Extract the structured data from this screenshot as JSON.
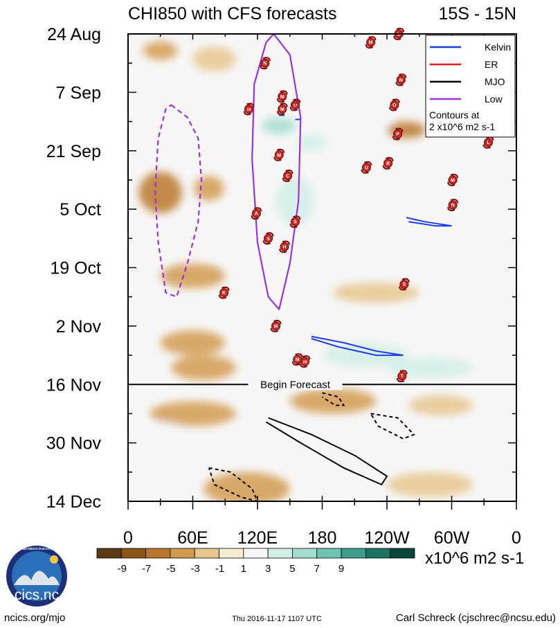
{
  "title_left": "CHI850 with CFS forecasts",
  "title_right": "15S - 15N",
  "chart_data": {
    "type": "heatmap",
    "title": "CHI850 with CFS forecasts",
    "subtitle": "15S - 15N",
    "x_range": [
      0,
      360
    ],
    "x_ticks": [
      {
        "lon": 0,
        "label": "0"
      },
      {
        "lon": 60,
        "label": "60E"
      },
      {
        "lon": 120,
        "label": "120E"
      },
      {
        "lon": 180,
        "label": "180"
      },
      {
        "lon": 240,
        "label": "120W"
      },
      {
        "lon": 300,
        "label": "60W"
      },
      {
        "lon": 360,
        "label": "0"
      }
    ],
    "y_range_days": [
      0,
      112
    ],
    "y_ticks": [
      {
        "day": 0,
        "label": "24 Aug"
      },
      {
        "day": 14,
        "label": "7 Sep"
      },
      {
        "day": 28,
        "label": "21 Sep"
      },
      {
        "day": 42,
        "label": "5 Oct"
      },
      {
        "day": 56,
        "label": "19 Oct"
      },
      {
        "day": 70,
        "label": "2 Nov"
      },
      {
        "day": 84,
        "label": "16 Nov"
      },
      {
        "day": 98,
        "label": "30 Nov"
      },
      {
        "day": 112,
        "label": "14 Dec"
      }
    ],
    "forecast_start_day": 84,
    "forecast_label": "Begin Forecast",
    "colorbar": {
      "levels": [
        "-9",
        "-7",
        "-5",
        "-3",
        "-1",
        "1",
        "3",
        "5",
        "7",
        "9"
      ],
      "colors": [
        "#5a3a12",
        "#8a5718",
        "#b8772a",
        "#d29a4f",
        "#e6c68e",
        "#f6ecd2",
        "#f7f7f7",
        "#d2eee7",
        "#a4dccf",
        "#6fc3b2",
        "#3d9c8c",
        "#1a7363",
        "#08463b"
      ],
      "units": "x10^6 m2 s-1"
    },
    "legend": {
      "placement": "top-right",
      "entries": [
        {
          "name": "Kelvin",
          "color": "#1f3fe0"
        },
        {
          "name": "ER",
          "color": "#e31a1c"
        },
        {
          "name": "MJO",
          "color": "#000000"
        },
        {
          "name": "Low",
          "color": "#9b30e0"
        }
      ],
      "note_line1": "Contours at",
      "note_line2": "2 x10^6 m2 s-1"
    },
    "shading_blobs": [
      {
        "lon": 30,
        "day": 4,
        "rlon": 16,
        "rday": 2.2,
        "val": -4
      },
      {
        "lon": 80,
        "day": 6,
        "rlon": 20,
        "rday": 3,
        "val": -2
      },
      {
        "lon": 150,
        "day": 14,
        "rlon": 25,
        "rday": 2.5,
        "val": 3
      },
      {
        "lon": 140,
        "day": 22,
        "rlon": 16,
        "rday": 2,
        "val": 6
      },
      {
        "lon": 170,
        "day": 26,
        "rlon": 14,
        "rday": 2,
        "val": 4
      },
      {
        "lon": 220,
        "day": 20,
        "rlon": 24,
        "rday": 3,
        "val": 3
      },
      {
        "lon": 258,
        "day": 23,
        "rlon": 18,
        "rday": 2,
        "val": -5
      },
      {
        "lon": 250,
        "day": 33,
        "rlon": 25,
        "rday": 3,
        "val": 3
      },
      {
        "lon": 30,
        "day": 38,
        "rlon": 20,
        "rday": 5,
        "val": -5
      },
      {
        "lon": 75,
        "day": 37,
        "rlon": 14,
        "rday": 3,
        "val": -3
      },
      {
        "lon": 155,
        "day": 40,
        "rlon": 18,
        "rday": 6,
        "val": 4
      },
      {
        "lon": 290,
        "day": 35,
        "rlon": 30,
        "rday": 3,
        "val": 2
      },
      {
        "lon": 60,
        "day": 58,
        "rlon": 30,
        "rday": 3,
        "val": -4
      },
      {
        "lon": 140,
        "day": 56,
        "rlon": 14,
        "rday": 3,
        "val": 3
      },
      {
        "lon": 230,
        "day": 62,
        "rlon": 40,
        "rday": 2.5,
        "val": -2
      },
      {
        "lon": 60,
        "day": 74,
        "rlon": 30,
        "rday": 3,
        "val": -4
      },
      {
        "lon": 180,
        "day": 68,
        "rlon": 30,
        "rday": 2.5,
        "val": 2
      },
      {
        "lon": 220,
        "day": 77,
        "rlon": 40,
        "rday": 3,
        "val": 5
      },
      {
        "lon": 280,
        "day": 80,
        "rlon": 40,
        "rday": 2.5,
        "val": 5
      },
      {
        "lon": 70,
        "day": 80,
        "rlon": 30,
        "rday": 3,
        "val": -3
      },
      {
        "lon": 190,
        "day": 88,
        "rlon": 40,
        "rday": 3,
        "val": -3
      },
      {
        "lon": 60,
        "day": 91,
        "rlon": 40,
        "rday": 3,
        "val": -3
      },
      {
        "lon": 290,
        "day": 89,
        "rlon": 30,
        "rday": 2.5,
        "val": -1
      },
      {
        "lon": 30,
        "day": 96,
        "rlon": 25,
        "rday": 3,
        "val": 3
      },
      {
        "lon": 320,
        "day": 96,
        "rlon": 30,
        "rday": 3,
        "val": 3
      },
      {
        "lon": 200,
        "day": 102,
        "rlon": 30,
        "rday": 3,
        "val": 3
      },
      {
        "lon": 110,
        "day": 109,
        "rlon": 40,
        "rday": 4,
        "val": -4
      },
      {
        "lon": 280,
        "day": 108,
        "rlon": 40,
        "rday": 3,
        "val": -2
      }
    ],
    "mjo_contours": [
      {
        "style": "solid",
        "points": [
          [
            130,
            92
          ],
          [
            170,
            96
          ],
          [
            210,
            101
          ],
          [
            240,
            106
          ],
          [
            235,
            108
          ],
          [
            200,
            104
          ],
          [
            160,
            98
          ],
          [
            128,
            93
          ]
        ]
      },
      {
        "style": "dashed",
        "points": [
          [
            180,
            86
          ],
          [
            195,
            87
          ],
          [
            200,
            89
          ],
          [
            192,
            89
          ],
          [
            180,
            87
          ]
        ]
      },
      {
        "style": "dashed",
        "points": [
          [
            225,
            91
          ],
          [
            250,
            92
          ],
          [
            265,
            96
          ],
          [
            255,
            97
          ],
          [
            232,
            94
          ],
          [
            225,
            91
          ]
        ]
      },
      {
        "style": "dashed",
        "points": [
          [
            75,
            104
          ],
          [
            95,
            105
          ],
          [
            115,
            109
          ],
          [
            120,
            112
          ],
          [
            105,
            111
          ],
          [
            80,
            108
          ],
          [
            75,
            104
          ]
        ]
      }
    ],
    "kelvin_contours": [
      {
        "points": [
          [
            170,
            72.5
          ],
          [
            200,
            74
          ],
          [
            230,
            76
          ],
          [
            255,
            77
          ],
          [
            230,
            77
          ],
          [
            195,
            75
          ],
          [
            170,
            73
          ]
        ]
      },
      {
        "points": [
          [
            258,
            44
          ],
          [
            275,
            45
          ],
          [
            300,
            46
          ],
          [
            285,
            46
          ],
          [
            260,
            45
          ]
        ]
      },
      {
        "points": [
          [
            140,
            19.5
          ],
          [
            145,
            19.5
          ]
        ]
      },
      {
        "points": [
          [
            155,
            20.5
          ],
          [
            160,
            20.5
          ]
        ]
      }
    ],
    "low_contours": [
      {
        "style": "solid",
        "color": "#9b30e0",
        "points": [
          [
            135,
            0
          ],
          [
            150,
            5
          ],
          [
            160,
            20
          ],
          [
            158,
            40
          ],
          [
            150,
            55
          ],
          [
            140,
            66
          ],
          [
            130,
            63
          ],
          [
            120,
            50
          ],
          [
            115,
            30
          ],
          [
            117,
            12
          ],
          [
            128,
            2
          ],
          [
            135,
            0
          ]
        ]
      },
      {
        "style": "dashed",
        "color": "#9b30e0",
        "points": [
          [
            40,
            17
          ],
          [
            55,
            20
          ],
          [
            65,
            25
          ],
          [
            68,
            35
          ],
          [
            65,
            45
          ],
          [
            55,
            55
          ],
          [
            45,
            63
          ],
          [
            35,
            62
          ],
          [
            28,
            50
          ],
          [
            25,
            38
          ],
          [
            28,
            25
          ],
          [
            35,
            18
          ],
          [
            40,
            17
          ]
        ]
      }
    ],
    "storm_markers": [
      {
        "lon": 225,
        "day": 2,
        "label": "M"
      },
      {
        "lon": 251,
        "day": 0,
        "label": "L"
      },
      {
        "lon": 127,
        "day": 7,
        "label": "N"
      },
      {
        "lon": 253,
        "day": 11,
        "label": "N"
      },
      {
        "lon": 143,
        "day": 15,
        "label": "M"
      },
      {
        "lon": 143,
        "day": 18,
        "label": "M"
      },
      {
        "lon": 155,
        "day": 17,
        "label": "17"
      },
      {
        "lon": 112,
        "day": 18,
        "label": "19"
      },
      {
        "lon": 247,
        "day": 17,
        "label": "O"
      },
      {
        "lon": 250,
        "day": 24,
        "label": "P"
      },
      {
        "lon": 334,
        "day": 26,
        "label": "L"
      },
      {
        "lon": 140,
        "day": 29,
        "label": "M"
      },
      {
        "lon": 148,
        "day": 34,
        "label": "C"
      },
      {
        "lon": 221,
        "day": 32,
        "label": "U"
      },
      {
        "lon": 241,
        "day": 31,
        "label": "R"
      },
      {
        "lon": 301,
        "day": 35,
        "label": "M"
      },
      {
        "lon": 301,
        "day": 41,
        "label": "N"
      },
      {
        "lon": 119,
        "day": 43,
        "label": "A"
      },
      {
        "lon": 155,
        "day": 45,
        "label": "S"
      },
      {
        "lon": 130,
        "day": 49,
        "label": "S"
      },
      {
        "lon": 145,
        "day": 51,
        "label": "H"
      },
      {
        "lon": 256,
        "day": 60,
        "label": "S"
      },
      {
        "lon": 89,
        "day": 62,
        "label": "K"
      },
      {
        "lon": 137,
        "day": 70,
        "label": "M"
      },
      {
        "lon": 157,
        "day": 78,
        "label": "M"
      },
      {
        "lon": 164,
        "day": 78.5,
        "label": "28"
      },
      {
        "lon": 254,
        "day": 82,
        "label": "T"
      }
    ]
  },
  "footer": {
    "logo_text": "cics.nc",
    "logo_ring_text": "Cooperative Institute for Climate and Satellites",
    "left": "ncics.org/mjo",
    "center": "Thu 2016-11-17 1107 UTC",
    "right": "Carl Schreck (cjschrec@ncsu.edu)"
  }
}
